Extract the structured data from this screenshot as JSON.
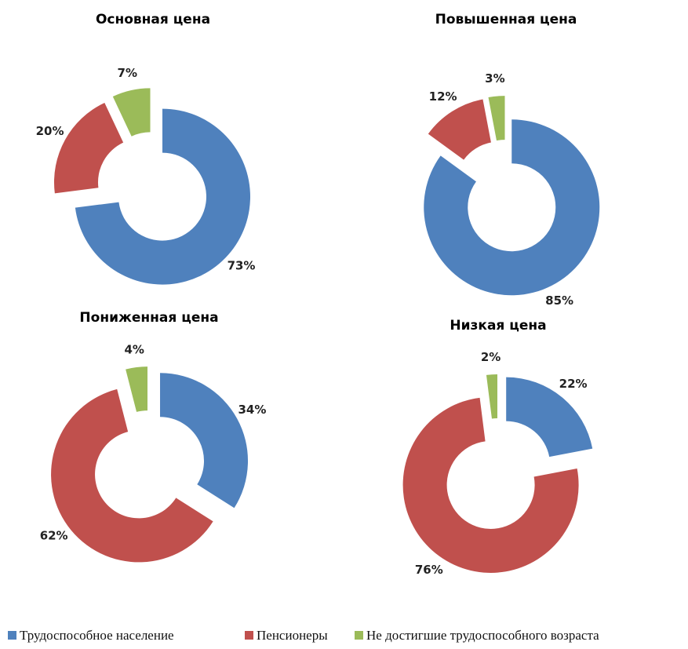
{
  "chart_data": [
    {
      "type": "donut",
      "title": "Основная цена",
      "values": [
        73,
        20,
        7
      ],
      "value_labels": [
        "73%",
        "20%",
        "7%"
      ]
    },
    {
      "type": "donut",
      "title": "Повышенная цена",
      "values": [
        85,
        12,
        3
      ],
      "value_labels": [
        "85%",
        "12%",
        "3%"
      ]
    },
    {
      "type": "donut",
      "title": "Пониженная цена",
      "values": [
        34,
        62,
        4
      ],
      "value_labels": [
        "34%",
        "62%",
        "4%"
      ]
    },
    {
      "type": "donut",
      "title": "Низкая цена",
      "values": [
        22,
        76,
        2
      ],
      "value_labels": [
        "22%",
        "76%",
        "2%"
      ]
    }
  ],
  "legend": {
    "labels": [
      "Трудоспособное население",
      "Пенсионеры",
      "Не достигшие трудоспособного возраста"
    ],
    "colors": [
      "#4f81bd",
      "#c0504d",
      "#9bbb59"
    ]
  }
}
